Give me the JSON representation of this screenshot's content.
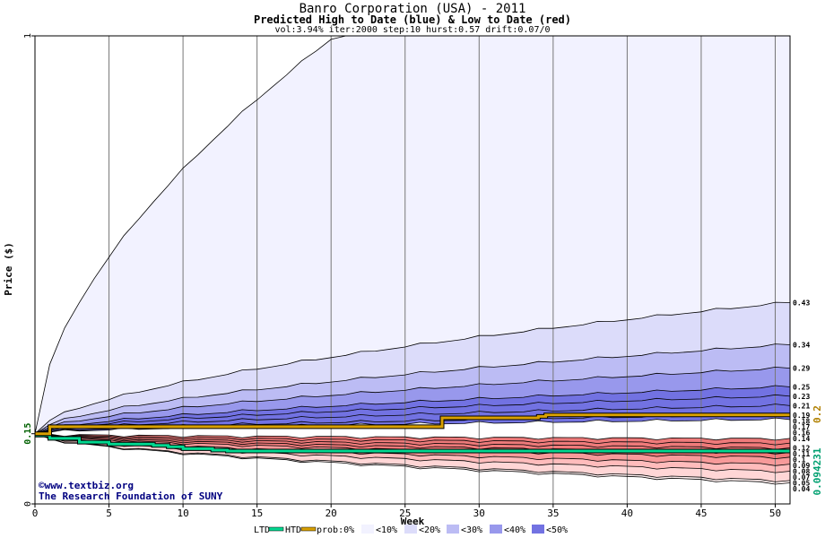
{
  "header": {
    "title": "Banro Corporation (USA) - 2011",
    "subtitle": "Predicted High to Date (blue) &  Low to Date (red)",
    "params": "vol:3.94% iter:2000 step:10 hurst:0.57 drift:0.07/0"
  },
  "watermark": {
    "copyright": "©www.textbiz.org",
    "foundation": "The Research Foundation of SUNY"
  },
  "colors": {
    "htd": "#00d890",
    "prob": "#d8a000",
    "band10": "#f2f2ff",
    "band20": "#dcdcfa",
    "band30": "#bcbcf4",
    "band40": "#9898ec",
    "band50": "#7272e2",
    "red10": "#fff0f0",
    "red20": "#ffd6d6",
    "red30": "#ffbcbc",
    "red40": "#f79a9a",
    "red50": "#ee7a7a"
  },
  "legend": {
    "items": [
      "LTD",
      "HTD",
      "prob:0%",
      "<10%",
      "<20%",
      "<30%",
      "<40%",
      "<50%"
    ]
  },
  "chart_data": {
    "type": "area",
    "title": "Banro Corporation (USA) - 2011",
    "subtitle": "Predicted High to Date (blue) &  Low to Date (red)",
    "xlabel": "Week",
    "ylabel": "Price ($)",
    "xlim": [
      0,
      51
    ],
    "ylim": [
      0,
      1
    ],
    "x_ticks": [
      0,
      5,
      10,
      15,
      20,
      25,
      30,
      35,
      40,
      45,
      50
    ],
    "y_tick_labels": [
      "0",
      "0.15",
      "1"
    ],
    "start_price": 0.15,
    "right_labels_high": [
      0.43,
      0.34,
      0.29,
      0.25,
      0.23,
      0.21,
      0.19,
      0.18,
      0.17,
      0.16
    ],
    "right_labels_low": [
      0.14,
      0.12,
      0.11,
      0.1,
      0.09,
      0.08,
      0.07,
      0.05,
      0.04
    ],
    "ltd_value": "0.094231",
    "prob_value": "0.2",
    "series": [
      {
        "name": "HTD",
        "x": [
          0,
          1,
          3,
          5,
          8,
          9,
          10,
          12,
          13,
          51
        ],
        "values": [
          0.147,
          0.14,
          0.132,
          0.128,
          0.125,
          0.122,
          0.118,
          0.115,
          0.113,
          0.113
        ]
      },
      {
        "name": "prob:0%",
        "x": [
          0,
          1,
          27,
          27.5,
          34,
          34.5,
          51
        ],
        "values": [
          0.15,
          0.165,
          0.165,
          0.184,
          0.187,
          0.19,
          0.19
        ]
      }
    ]
  }
}
